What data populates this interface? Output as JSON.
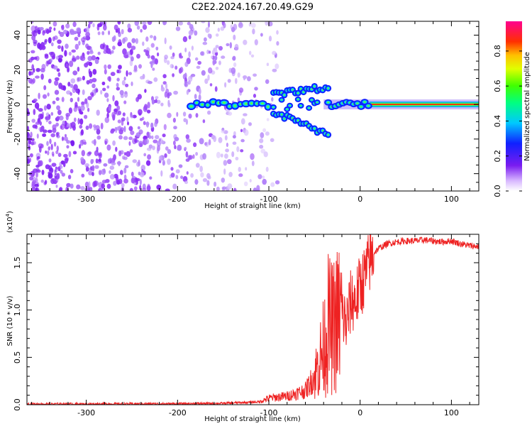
{
  "title": "C2E2.2024.167.20.49.G29",
  "colors": {
    "spectrogram_points": "#7a1cf0",
    "signal_core": "#00a0ff",
    "snr_line": "#ee2222"
  },
  "chart_data": [
    {
      "type": "heatmap",
      "xlabel": "Height of straight line (km)",
      "ylabel": "Frequency (Hz)",
      "xlim": [
        -365,
        130
      ],
      "ylim": [
        -50,
        48
      ],
      "xticks": [
        -300,
        -200,
        -100,
        0,
        100
      ],
      "yticks": [
        -40,
        -20,
        0,
        20,
        40
      ],
      "xtick_labels": [
        "-300",
        "-200",
        "-100",
        "0",
        "100"
      ],
      "ytick_labels": [
        "-40",
        "-20",
        "0",
        "20",
        "40"
      ],
      "noise_region_km": [
        -365,
        -90
      ],
      "signal": {
        "center_frequency_hz": 0,
        "continuous_from_km": -185,
        "bifurcation_km": [
          -95,
          -35
        ],
        "steady_from_km": 10
      },
      "colorbar": {
        "label": "Normalized spectral amplitude",
        "ticks": [
          0.0,
          0.2,
          0.4,
          0.6,
          0.8
        ],
        "tick_labels": [
          "0.0",
          "0.2",
          "0.4",
          "0.6",
          "0.8"
        ],
        "range": [
          0,
          0.97
        ]
      }
    },
    {
      "type": "line",
      "xlabel": "Height of straight line (km)",
      "ylabel": "SNR (10 * v/v)",
      "y_multiplier_label": "(x10",
      "y_multiplier_exp": "4",
      "xlim": [
        -365,
        130
      ],
      "ylim": [
        0,
        18000
      ],
      "xticks": [
        -300,
        -200,
        -100,
        0,
        100
      ],
      "yticks": [
        0,
        5000,
        10000,
        15000
      ],
      "xtick_labels": [
        "-300",
        "-200",
        "-100",
        "0",
        "100"
      ],
      "ytick_labels": [
        "0.0",
        "0.5",
        "1.0",
        "1.5"
      ],
      "series": [
        {
          "name": "SNR",
          "x": [
            -365,
            -300,
            -200,
            -150,
            -110,
            -100,
            -80,
            -60,
            -50,
            -45,
            -40,
            -35,
            -30,
            -25,
            -20,
            -15,
            -10,
            -5,
            0,
            5,
            10,
            15,
            20,
            30,
            40,
            50,
            60,
            70,
            80,
            90,
            100,
            110,
            120,
            130
          ],
          "y": [
            80,
            80,
            100,
            150,
            300,
            700,
            900,
            1500,
            3000,
            4500,
            6000,
            8500,
            8000,
            9000,
            9500,
            8500,
            11000,
            11000,
            12500,
            13500,
            15000,
            16000,
            16500,
            17000,
            17200,
            17300,
            17300,
            17400,
            17300,
            17200,
            17300,
            17000,
            16800,
            16700
          ]
        }
      ]
    }
  ]
}
